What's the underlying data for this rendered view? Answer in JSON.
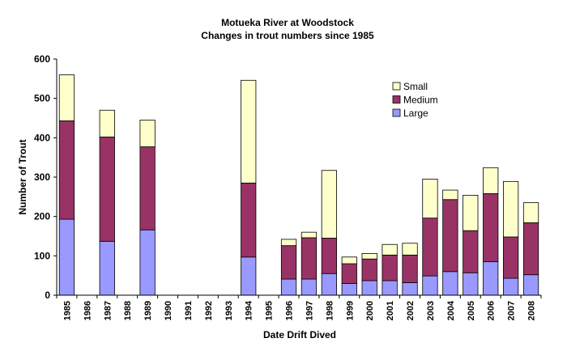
{
  "chart_data": {
    "type": "bar",
    "stacked": true,
    "title": "Motueka River at Woodstock",
    "subtitle": "Changes in trout numbers since 1985",
    "xlabel": "Date Drift Dived",
    "ylabel": "Number of Trout",
    "ylim": [
      0,
      600
    ],
    "yticks": [
      0,
      100,
      200,
      300,
      400,
      500,
      600
    ],
    "grid": false,
    "legend_position": "top-right",
    "categories": [
      "1985",
      "1986",
      "1987",
      "1988",
      "1989",
      "1990",
      "1991",
      "1992",
      "1993",
      "1994",
      "1995",
      "1996",
      "1997",
      "1998",
      "1999",
      "2000",
      "2001",
      "2002",
      "2003",
      "2004",
      "2005",
      "2006",
      "2007",
      "2008"
    ],
    "series": [
      {
        "name": "Large",
        "color": "#9999ff",
        "values": [
          193,
          null,
          137,
          null,
          166,
          null,
          null,
          null,
          null,
          97,
          null,
          41,
          41,
          55,
          30,
          37,
          37,
          32,
          49,
          60,
          57,
          85,
          43,
          52
        ]
      },
      {
        "name": "Medium",
        "color": "#993366",
        "values": [
          250,
          null,
          265,
          null,
          211,
          null,
          null,
          null,
          null,
          188,
          null,
          85,
          105,
          90,
          50,
          55,
          65,
          70,
          147,
          183,
          107,
          173,
          105,
          132
        ]
      },
      {
        "name": "Small",
        "color": "#ffffcc",
        "values": [
          117,
          null,
          68,
          null,
          68,
          null,
          null,
          null,
          null,
          261,
          null,
          16,
          14,
          172,
          17,
          14,
          27,
          30,
          99,
          24,
          90,
          66,
          141,
          51
        ]
      }
    ]
  }
}
